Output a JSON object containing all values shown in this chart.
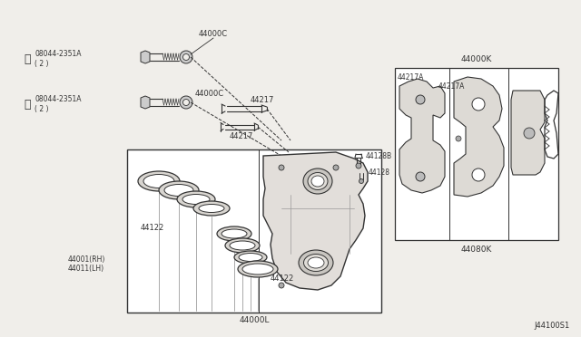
{
  "bg_color": "#f0eeea",
  "line_color": "#333333",
  "diagram_id": "J44100S1",
  "labels": {
    "44000C_top": "44000C",
    "44000C_mid": "44000C",
    "44217_top": "44217",
    "44217_bot": "44217",
    "08044_top": "08044-2351A\n( 2 )",
    "08044_bot": "08044-2351A\n( 2 )",
    "44122_left": "44122",
    "44122_right": "44122",
    "44128B": "44128B",
    "44128": "44128",
    "44000L": "44000L",
    "44000K": "44000K",
    "44080K": "44080K",
    "44217A_top": "44217A",
    "44217A_bot": "44217A",
    "44001_rh": "44001(RH)",
    "44011_lh": "44011(LH)"
  },
  "font_size": 6.0
}
